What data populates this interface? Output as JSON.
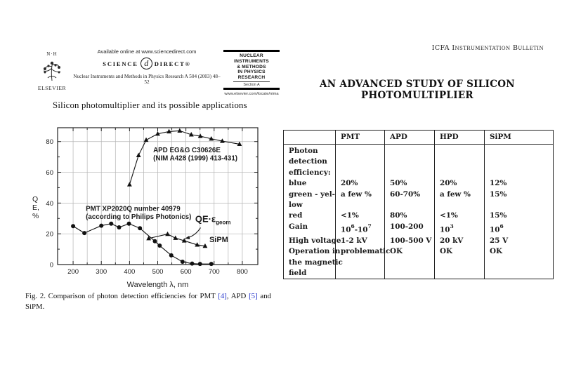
{
  "colors": {
    "text": "#1a1a1a",
    "grid": "#b4b4b4",
    "frame": "#222222",
    "series": "#111111",
    "ref_blue": "#2233cc"
  },
  "left_page": {
    "header": {
      "available_online": "Available online at www.sciencedirect.com",
      "science_word": "SCIENCE",
      "direct_word": "DIRECT®",
      "d_glyph": "d",
      "journal_line": "Nuclear Instruments and Methods in Physics Research A 504 (2003) 48–52",
      "elsevier_monogram": "N·H",
      "elsevier_name": "ELSEVIER",
      "journal_box": {
        "lines": [
          "NUCLEAR",
          "INSTRUMENTS",
          "& METHODS",
          "IN PHYSICS",
          "RESEARCH"
        ],
        "section": "Section A",
        "url": "www.elsevier.com/locate/nima"
      }
    },
    "title": "Silicon photomultiplier and its possible applications",
    "caption": {
      "segments": [
        {
          "text": "Fig. 2. Comparison of photon detection efficiencies for PMT "
        },
        {
          "text": "[4]",
          "ref": true
        },
        {
          "text": ", APD "
        },
        {
          "text": "[5]",
          "ref": true
        },
        {
          "text": " and SiPM."
        }
      ]
    }
  },
  "chart_data": {
    "type": "line",
    "title": "",
    "xlabel": "Wavelength λ, nm",
    "ylabel": "Q E, %",
    "ylabel_lines": [
      "Q",
      "E,",
      "%"
    ],
    "xlim": [
      145,
      855
    ],
    "ylim": [
      0,
      89
    ],
    "xticks": [
      200,
      300,
      400,
      500,
      600,
      700,
      800
    ],
    "yticks": [
      0,
      20,
      40,
      60,
      80
    ],
    "grid": true,
    "legend_position": "none",
    "series": [
      {
        "name": "APD",
        "marker": "triangle",
        "points": [
          [
            400,
            52
          ],
          [
            432,
            71
          ],
          [
            459,
            81
          ],
          [
            500,
            85
          ],
          [
            540,
            86.5
          ],
          [
            578,
            87
          ],
          [
            619,
            84.5
          ],
          [
            651,
            83.5
          ],
          [
            690,
            81.8
          ],
          [
            729,
            80.3
          ],
          [
            790,
            78.3
          ]
        ]
      },
      {
        "name": "PMT",
        "marker": "circle",
        "points": [
          [
            200,
            25
          ],
          [
            240,
            20.5
          ],
          [
            300,
            25.3
          ],
          [
            335,
            26.6
          ],
          [
            363,
            24.2
          ],
          [
            398,
            26.6
          ],
          [
            437,
            23.6
          ],
          [
            490,
            15.2
          ],
          [
            507,
            12.3
          ],
          [
            548,
            6
          ],
          [
            588,
            1.8
          ],
          [
            622,
            0.6
          ],
          [
            650,
            0.4
          ],
          [
            690,
            0.4
          ]
        ]
      },
      {
        "name": "SiPM",
        "marker": "triangle",
        "points": [
          [
            468,
            17
          ],
          [
            535,
            19.8
          ],
          [
            563,
            17.2
          ],
          [
            594,
            15.5
          ],
          [
            640,
            12.8
          ],
          [
            668,
            12
          ]
        ]
      }
    ],
    "annotations": [
      {
        "lines": [
          "APD EG&G C30626E",
          "(NIM A428 (1999) 413-431)"
        ],
        "x": 484,
        "y": 73
      },
      {
        "lines": [
          "PMT XP2020Q number 40979",
          "(according to Philips Photonics)"
        ],
        "x": 245,
        "y": 35
      },
      {
        "lines": [
          "QE·ε"
        ],
        "sub": "geom",
        "x": 633,
        "y": 27.5,
        "size": 13
      },
      {
        "lines": [
          "SiPM"
        ],
        "x": 683,
        "y": 14.5,
        "size": 11
      }
    ],
    "arrow": {
      "from": [
        652,
        24
      ],
      "to": [
        597,
        17
      ]
    }
  },
  "right_page": {
    "bulletin": "ICFA Instrumentation Bulletin",
    "title_line1": "AN ADVANCED STUDY OF SILICON",
    "title_line2": "PHOTOMULTIPLIER",
    "table": {
      "columns": [
        "",
        "PMT",
        "APD",
        "HPD",
        "SiPM"
      ],
      "rows": [
        {
          "label_lines": [
            "Photon",
            "detection",
            "efficiency:"
          ],
          "values": [
            "",
            "",
            "",
            ""
          ]
        },
        {
          "label_lines": [
            "blue"
          ],
          "values": [
            "20%",
            "50%",
            "20%",
            "12%"
          ]
        },
        {
          "label_lines": [
            "green - yel-",
            "low"
          ],
          "values": [
            "a few %",
            "60-70%",
            "a few %",
            "15%"
          ]
        },
        {
          "label_lines": [
            "red"
          ],
          "values": [
            "<1%",
            "80%",
            "<1%",
            "15%"
          ]
        },
        {
          "label_lines": [
            "Gain"
          ],
          "values": [
            "10^{6}-10^{7}",
            "100-200",
            "10^{3}",
            "10^{6}"
          ]
        },
        {
          "label_lines": [
            "High voltage"
          ],
          "values": [
            "1-2 kV",
            "100-500 V",
            "20 kV",
            "25 V"
          ]
        },
        {
          "label_lines": [
            "Operation in",
            "the magnetic",
            "field"
          ],
          "values": [
            "problematic",
            "OK",
            "OK",
            "OK"
          ]
        }
      ]
    }
  }
}
